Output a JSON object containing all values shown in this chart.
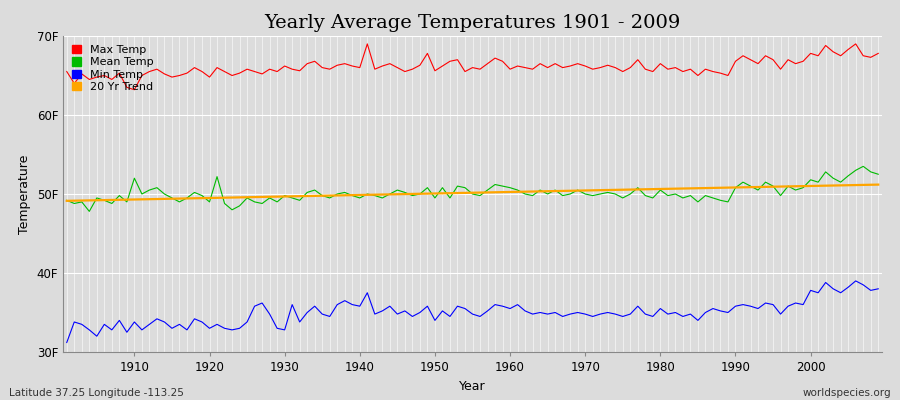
{
  "title": "Yearly Average Temperatures 1901 - 2009",
  "xlabel": "Year",
  "ylabel": "Temperature",
  "bg_color": "#dcdcdc",
  "title_fontsize": 14,
  "years": [
    1901,
    1902,
    1903,
    1904,
    1905,
    1906,
    1907,
    1908,
    1909,
    1910,
    1911,
    1912,
    1913,
    1914,
    1915,
    1916,
    1917,
    1918,
    1919,
    1920,
    1921,
    1922,
    1923,
    1924,
    1925,
    1926,
    1927,
    1928,
    1929,
    1930,
    1931,
    1932,
    1933,
    1934,
    1935,
    1936,
    1937,
    1938,
    1939,
    1940,
    1941,
    1942,
    1943,
    1944,
    1945,
    1946,
    1947,
    1948,
    1949,
    1950,
    1951,
    1952,
    1953,
    1954,
    1955,
    1956,
    1957,
    1958,
    1959,
    1960,
    1961,
    1962,
    1963,
    1964,
    1965,
    1966,
    1967,
    1968,
    1969,
    1970,
    1971,
    1972,
    1973,
    1974,
    1975,
    1976,
    1977,
    1978,
    1979,
    1980,
    1981,
    1982,
    1983,
    1984,
    1985,
    1986,
    1987,
    1988,
    1989,
    1990,
    1991,
    1992,
    1993,
    1994,
    1995,
    1996,
    1997,
    1998,
    1999,
    2000,
    2001,
    2002,
    2003,
    2004,
    2005,
    2006,
    2007,
    2008,
    2009
  ],
  "max_temp": [
    65.5,
    64.0,
    65.2,
    64.5,
    64.8,
    65.0,
    64.5,
    65.3,
    63.5,
    63.2,
    65.0,
    65.5,
    65.8,
    65.2,
    64.8,
    65.0,
    65.3,
    66.0,
    65.5,
    64.8,
    66.0,
    65.5,
    65.0,
    65.3,
    65.8,
    65.5,
    65.2,
    65.8,
    65.5,
    66.2,
    65.8,
    65.6,
    66.5,
    66.8,
    66.0,
    65.8,
    66.3,
    66.5,
    66.2,
    66.0,
    69.0,
    65.8,
    66.2,
    66.5,
    66.0,
    65.5,
    65.8,
    66.3,
    67.8,
    65.6,
    66.2,
    66.8,
    67.0,
    65.5,
    66.0,
    65.8,
    66.5,
    67.2,
    66.8,
    65.8,
    66.2,
    66.0,
    65.8,
    66.5,
    66.0,
    66.5,
    66.0,
    66.2,
    66.5,
    66.2,
    65.8,
    66.0,
    66.3,
    66.0,
    65.5,
    66.0,
    67.0,
    65.8,
    65.5,
    66.5,
    65.8,
    66.0,
    65.5,
    65.8,
    65.0,
    65.8,
    65.5,
    65.3,
    65.0,
    66.8,
    67.5,
    67.0,
    66.5,
    67.5,
    67.0,
    65.8,
    67.0,
    66.5,
    66.8,
    67.8,
    67.5,
    68.8,
    68.0,
    67.5,
    68.3,
    69.0,
    67.5,
    67.3,
    67.8
  ],
  "mean_temp": [
    49.2,
    48.8,
    49.0,
    47.8,
    49.5,
    49.2,
    48.8,
    49.8,
    49.0,
    52.0,
    50.0,
    50.5,
    50.8,
    50.0,
    49.5,
    49.0,
    49.5,
    50.2,
    49.8,
    49.0,
    52.2,
    48.8,
    48.0,
    48.5,
    49.5,
    49.0,
    48.8,
    49.5,
    49.0,
    49.8,
    49.5,
    49.2,
    50.2,
    50.5,
    49.8,
    49.5,
    50.0,
    50.2,
    49.8,
    49.5,
    50.0,
    49.8,
    49.5,
    50.0,
    50.5,
    50.2,
    49.8,
    50.0,
    50.8,
    49.5,
    50.8,
    49.5,
    51.0,
    50.8,
    50.0,
    49.8,
    50.5,
    51.2,
    51.0,
    50.8,
    50.5,
    50.0,
    49.8,
    50.5,
    50.0,
    50.5,
    49.8,
    50.0,
    50.5,
    50.0,
    49.8,
    50.0,
    50.2,
    50.0,
    49.5,
    50.0,
    50.8,
    49.8,
    49.5,
    50.5,
    49.8,
    50.0,
    49.5,
    49.8,
    49.0,
    49.8,
    49.5,
    49.2,
    49.0,
    50.8,
    51.5,
    51.0,
    50.5,
    51.5,
    51.0,
    49.8,
    51.0,
    50.5,
    50.8,
    51.8,
    51.5,
    52.8,
    52.0,
    51.5,
    52.3,
    53.0,
    53.5,
    52.8,
    52.5
  ],
  "min_temp": [
    31.2,
    33.8,
    33.5,
    32.8,
    32.0,
    33.5,
    32.8,
    34.0,
    32.5,
    33.8,
    32.8,
    33.5,
    34.2,
    33.8,
    33.0,
    33.5,
    32.8,
    34.2,
    33.8,
    33.0,
    33.5,
    33.0,
    32.8,
    33.0,
    33.8,
    35.8,
    36.2,
    34.8,
    33.0,
    32.8,
    36.0,
    33.8,
    35.0,
    35.8,
    34.8,
    34.5,
    36.0,
    36.5,
    36.0,
    35.8,
    37.5,
    34.8,
    35.2,
    35.8,
    34.8,
    35.2,
    34.5,
    35.0,
    35.8,
    34.0,
    35.2,
    34.5,
    35.8,
    35.5,
    34.8,
    34.5,
    35.2,
    36.0,
    35.8,
    35.5,
    36.0,
    35.2,
    34.8,
    35.0,
    34.8,
    35.0,
    34.5,
    34.8,
    35.0,
    34.8,
    34.5,
    34.8,
    35.0,
    34.8,
    34.5,
    34.8,
    35.8,
    34.8,
    34.5,
    35.5,
    34.8,
    35.0,
    34.5,
    34.8,
    34.0,
    35.0,
    35.5,
    35.2,
    35.0,
    35.8,
    36.0,
    35.8,
    35.5,
    36.2,
    36.0,
    34.8,
    35.8,
    36.2,
    36.0,
    37.8,
    37.5,
    38.8,
    38.0,
    37.5,
    38.2,
    39.0,
    38.5,
    37.8,
    38.0
  ],
  "ylim_min": 30,
  "ylim_max": 70,
  "yticks": [
    30,
    40,
    50,
    60,
    70
  ],
  "ytick_labels": [
    "30F",
    "40F",
    "50F",
    "60F",
    "70F"
  ],
  "max_color": "#ff0000",
  "mean_color": "#00bb00",
  "min_color": "#0000ff",
  "trend_color": "#ffa500",
  "grid_color": "#ffffff",
  "footnote_left": "Latitude 37.25 Longitude -113.25",
  "footnote_right": "worldspecies.org",
  "footnote_fontsize": 7.5,
  "axis_label_fontsize": 9,
  "tick_fontsize": 8.5,
  "legend_fontsize": 8
}
